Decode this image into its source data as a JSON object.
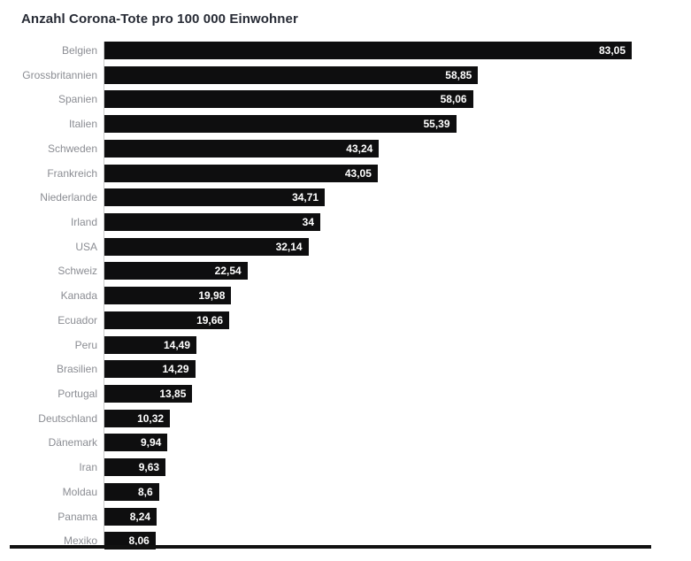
{
  "title": "Anzahl Corona-Tote pro 100 000 Einwohner",
  "chart_data": {
    "type": "bar",
    "orientation": "horizontal",
    "title": "Anzahl Corona-Tote pro 100 000 Einwohner",
    "xlabel": "",
    "ylabel": "",
    "xlim": [
      0,
      91
    ],
    "grid": false,
    "legend": false,
    "value_format": "german-decimal-comma",
    "categories": [
      "Belgien",
      "Grossbritannien",
      "Spanien",
      "Italien",
      "Schweden",
      "Frankreich",
      "Niederlande",
      "Irland",
      "USA",
      "Schweiz",
      "Kanada",
      "Ecuador",
      "Peru",
      "Brasilien",
      "Portugal",
      "Deutschland",
      "Dänemark",
      "Iran",
      "Moldau",
      "Panama",
      "Mexiko"
    ],
    "values": [
      83.05,
      58.85,
      58.06,
      55.39,
      43.24,
      43.05,
      34.71,
      34,
      32.14,
      22.54,
      19.98,
      19.66,
      14.49,
      14.29,
      13.85,
      10.32,
      9.94,
      9.63,
      8.6,
      8.24,
      8.06
    ],
    "value_labels": [
      "83,05",
      "58,85",
      "58,06",
      "55,39",
      "43,24",
      "43,05",
      "34,71",
      "34",
      "32,14",
      "22,54",
      "19,98",
      "19,66",
      "14,49",
      "14,29",
      "13,85",
      "10,32",
      "9,94",
      "9,63",
      "8,6",
      "8,24",
      "8,06"
    ],
    "colors": {
      "bar": "#0e0e0f",
      "category_label": "#8b8d93",
      "value_label": "#ffffff",
      "title": "#272b35",
      "axis_line": "#c9c9c9",
      "bottom_rule": "#111111"
    }
  }
}
